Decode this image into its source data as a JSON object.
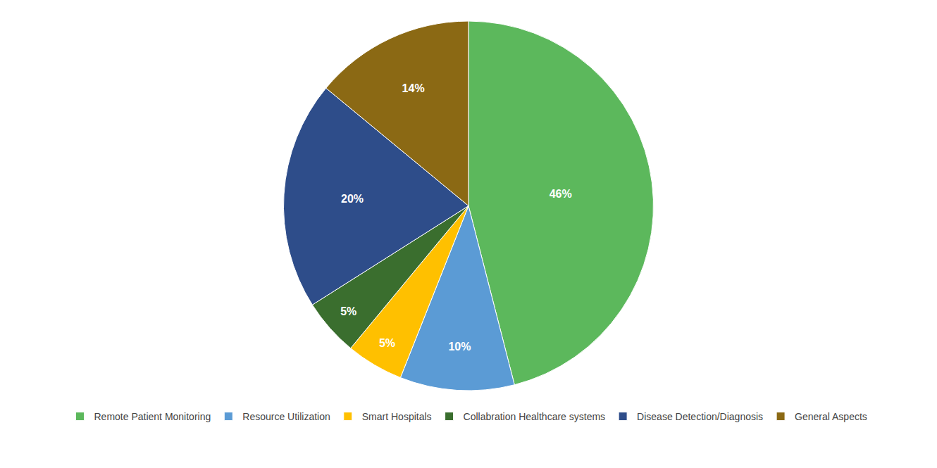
{
  "chart_data": {
    "type": "pie",
    "categories": [
      "Remote Patient Monitoring",
      "Resource Utilization",
      "Smart Hospitals",
      "Collabration Healthcare systems",
      "Disease Detection/Diagnosis",
      "General Aspects"
    ],
    "values": [
      46,
      10,
      5,
      5,
      20,
      14
    ],
    "value_labels": [
      "46%",
      "10%",
      "5%",
      "5%",
      "20%",
      "14%"
    ],
    "colors": [
      "#5cb85c",
      "#5b9bd5",
      "#ffc000",
      "#3a6e2e",
      "#2e4d8a",
      "#8b6914"
    ],
    "data_labels": true,
    "legend": "bottom"
  }
}
